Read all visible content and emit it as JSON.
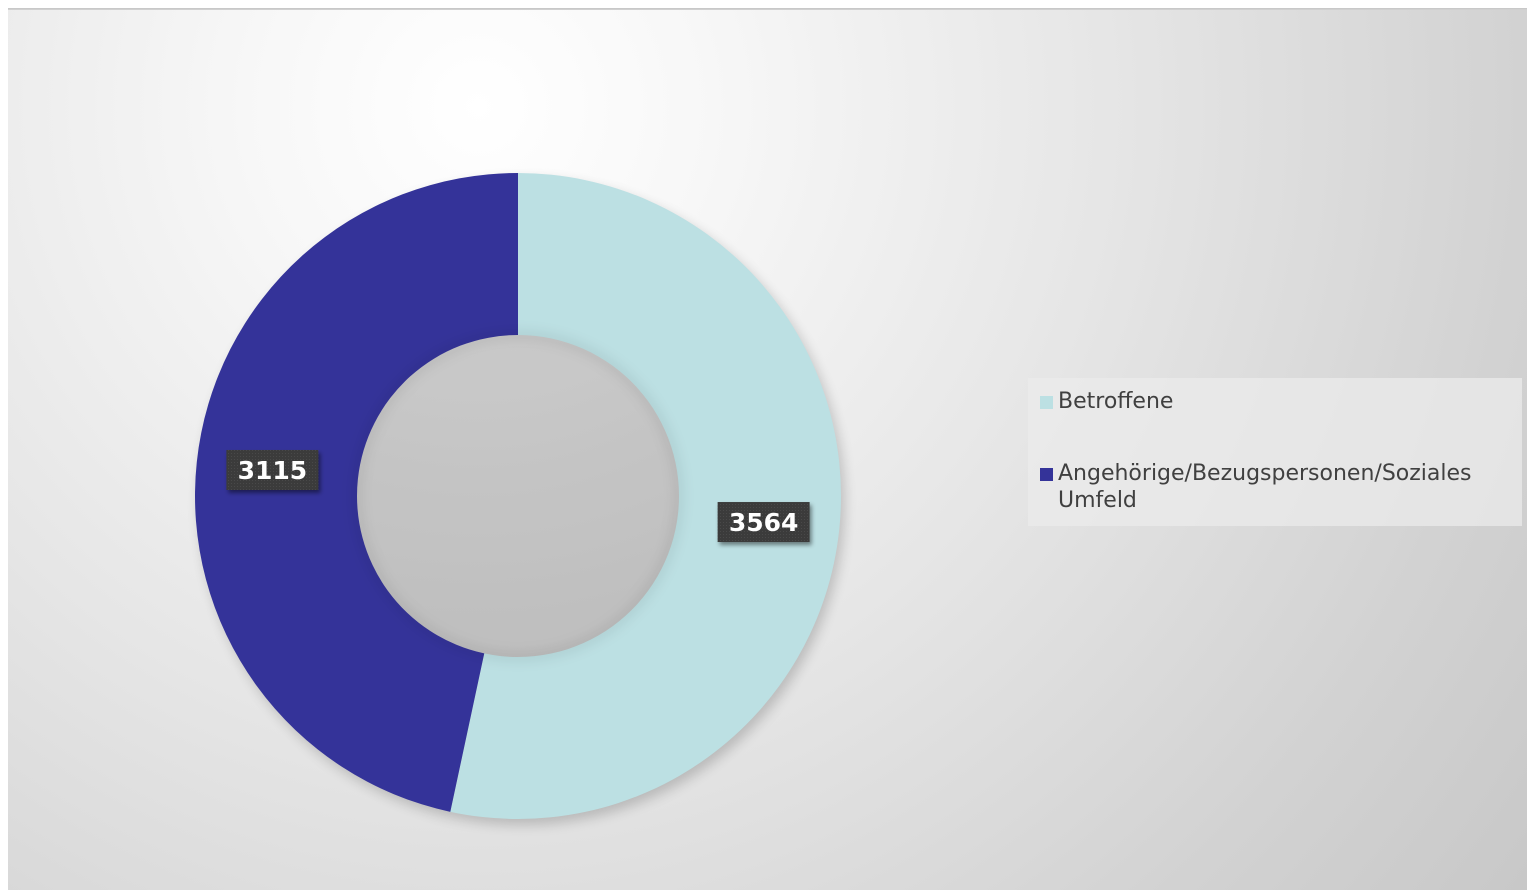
{
  "chart_data": {
    "type": "pie",
    "variant": "donut",
    "title": "",
    "legend_position": "right",
    "slices": [
      {
        "label": "Betroffene",
        "value": 3564,
        "color": "#bce0e3"
      },
      {
        "label": "Angehörige/Bezugspersonen/Soziales Umfeld",
        "value": 3115,
        "color": "#343399"
      }
    ],
    "data_label_style": {
      "background": "#3a3a3a",
      "text_color": "#ffffff"
    }
  }
}
